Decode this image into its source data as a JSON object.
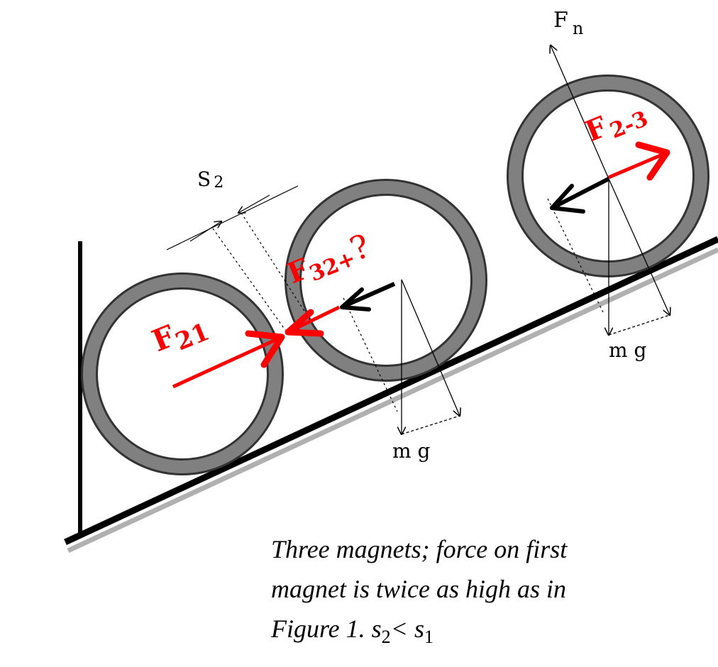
{
  "labels": {
    "fn": "F",
    "fn_sub": "n",
    "s2": "S",
    "s2_sub": "2",
    "mg": "m g",
    "f21": "F",
    "f21_sub": "21",
    "f32": "F",
    "f32_sub": "32+",
    "f32_q": "?",
    "f23": "F",
    "f23_sub": "2-3"
  },
  "caption": {
    "line1": "Three magnets; force on first",
    "line2": "magnet is twice as high as in",
    "line3_prefix": "Figure 1.  s",
    "line3_sub1": "2",
    "line3_mid": "< s",
    "line3_sub2": "1"
  },
  "colors": {
    "force_red": "#ff0000",
    "ring_gray": "#7f7f7f",
    "ring_edge": "#333333",
    "shadow": "#b0b0b0",
    "ink": "#000000"
  }
}
